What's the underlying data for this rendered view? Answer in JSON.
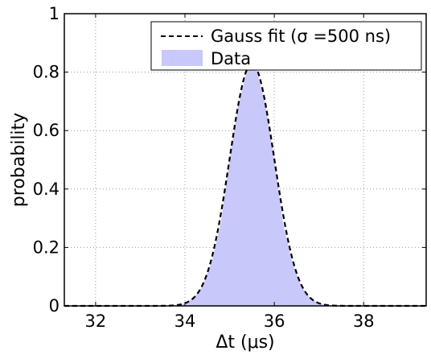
{
  "chart_data": {
    "type": "area",
    "xlabel": "Δt (μs)",
    "ylabel": "probability",
    "xlim": [
      31.3,
      39.4
    ],
    "ylim": [
      0,
      1
    ],
    "x_ticks": [
      32,
      34,
      36,
      38
    ],
    "y_ticks": [
      0,
      0.2,
      0.4,
      0.6,
      0.8,
      1
    ],
    "x_tick_labels": [
      "32",
      "34",
      "36",
      "38"
    ],
    "y_tick_labels": [
      "0",
      "0.2",
      "0.4",
      "0.6",
      "0.8",
      "1"
    ],
    "grid": true,
    "legend_position": "top-right",
    "series": [
      {
        "name": "Gauss fit (σ =500 ns)",
        "kind": "line",
        "style": "dashed",
        "color": "#000000",
        "gaussian": {
          "mu": 35.5,
          "sigma": 0.5,
          "peak": 0.83
        }
      },
      {
        "name": "Data",
        "kind": "area",
        "color": "#c8c8fa",
        "x": [
          33.4,
          33.6,
          33.8,
          34.0,
          34.2,
          34.4,
          34.6,
          34.8,
          35.0,
          35.2,
          35.4,
          35.5,
          35.6,
          35.8,
          36.0,
          36.2,
          36.4,
          36.6,
          36.8,
          37.0,
          37.2,
          37.4,
          37.6
        ],
        "y": [
          0.0,
          0.0,
          0.002,
          0.009,
          0.027,
          0.069,
          0.15,
          0.28,
          0.5,
          0.69,
          0.81,
          0.83,
          0.81,
          0.69,
          0.5,
          0.28,
          0.15,
          0.069,
          0.027,
          0.009,
          0.002,
          0.0,
          0.0
        ]
      }
    ]
  }
}
